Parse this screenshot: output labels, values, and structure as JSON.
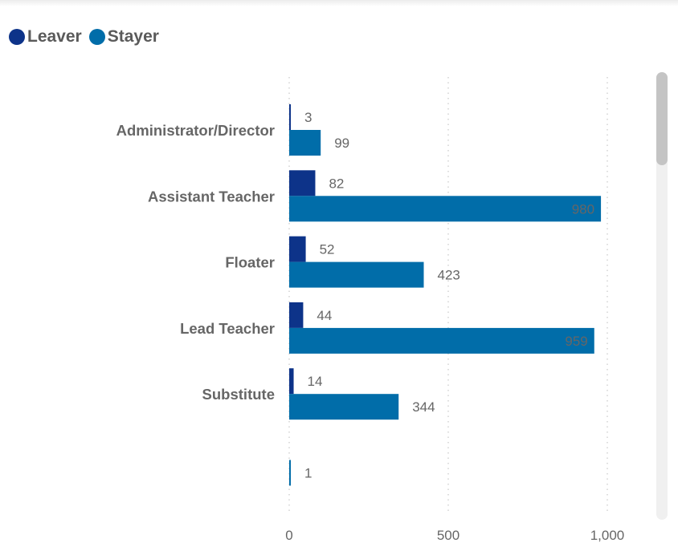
{
  "legend": {
    "items": [
      {
        "label": "Leaver",
        "color": "#0d3389"
      },
      {
        "label": "Stayer",
        "color": "#016da9"
      }
    ]
  },
  "chart_data": {
    "type": "bar",
    "orientation": "horizontal",
    "categories": [
      "Administrator/Director",
      "Assistant Teacher",
      "Floater",
      "Lead Teacher",
      "Substitute",
      ""
    ],
    "series": [
      {
        "name": "Leaver",
        "color": "#0d3389",
        "values": [
          3,
          82,
          52,
          44,
          14,
          null
        ]
      },
      {
        "name": "Stayer",
        "color": "#016da9",
        "values": [
          99,
          980,
          423,
          959,
          344,
          1
        ]
      }
    ],
    "xlim": [
      0,
      1000
    ],
    "xticks": [
      0,
      500,
      1000
    ],
    "xtick_labels": [
      "0",
      "500",
      "1,000"
    ],
    "grid": true,
    "legend_position": "top-left"
  }
}
